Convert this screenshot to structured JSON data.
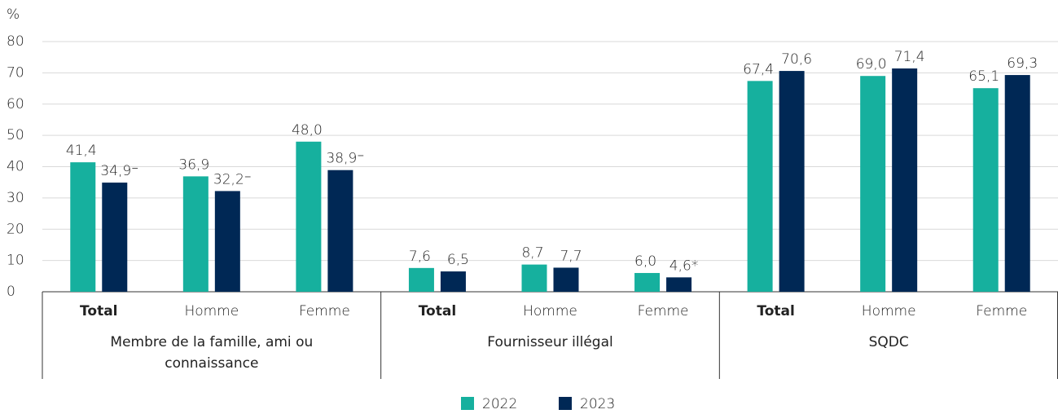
{
  "chart_data": {
    "type": "bar",
    "y_label": "%",
    "ylim": [
      0,
      80
    ],
    "yticks": [
      0,
      10,
      20,
      30,
      40,
      50,
      60,
      70,
      80
    ],
    "grid": true,
    "categories": [
      "Total",
      "Homme",
      "Femme",
      "Total",
      "Homme",
      "Femme",
      "Total",
      "Homme",
      "Femme"
    ],
    "groups": [
      {
        "name": "Membre de la famille, ami ou connaissance",
        "size": 3
      },
      {
        "name": "Fournisseur illégal",
        "size": 3
      },
      {
        "name": "SQDC",
        "size": 3
      }
    ],
    "series": [
      {
        "name": "2022",
        "color": "#16b09e",
        "values": [
          41.4,
          36.9,
          48.0,
          7.6,
          8.7,
          6.0,
          67.4,
          69.0,
          65.1
        ],
        "value_labels": [
          "41,4",
          "36,9",
          "48,0",
          "7,6",
          "8,7",
          "6,0",
          "67,4",
          "69,0",
          "65,1"
        ]
      },
      {
        "name": "2023",
        "color": "#002855",
        "values": [
          34.9,
          32.2,
          38.9,
          6.5,
          7.7,
          4.6,
          70.6,
          71.4,
          69.3
        ],
        "value_labels": [
          "34,9⁻",
          "32,2⁻",
          "38,9⁻",
          "6,5",
          "7,7",
          "4,6*",
          "70,6",
          "71,4",
          "69,3"
        ]
      }
    ],
    "legend": "bottom"
  }
}
